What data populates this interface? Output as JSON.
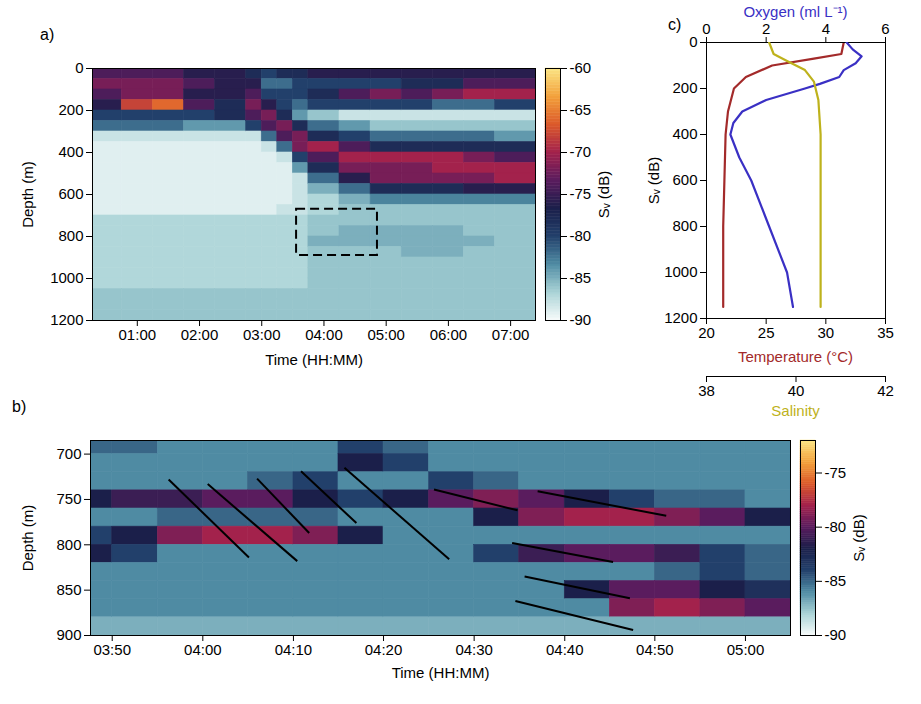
{
  "chart_data": [
    {
      "type": "heatmap",
      "panel_label": "a)",
      "x_label": "Time (HH:MM)",
      "y_label": "Depth (m)",
      "xlim": [
        0.28,
        7.4
      ],
      "xticks": [
        {
          "value": 1,
          "label": "01:00"
        },
        {
          "value": 2,
          "label": "02:00"
        },
        {
          "value": 3,
          "label": "03:00"
        },
        {
          "value": 4,
          "label": "04:00"
        },
        {
          "value": 5,
          "label": "05:00"
        },
        {
          "value": 6,
          "label": "06:00"
        },
        {
          "value": 7,
          "label": "07:00"
        }
      ],
      "ylim": [
        0,
        1200
      ],
      "yticks": [
        0,
        200,
        400,
        600,
        800,
        1000,
        1200
      ],
      "time_edges": [
        0.28,
        0.75,
        1.25,
        1.75,
        2.25,
        2.75,
        3.0,
        3.25,
        3.5,
        3.75,
        4.25,
        4.75,
        5.25,
        5.75,
        6.25,
        6.75,
        7.4
      ],
      "depth_edges": [
        0,
        50,
        100,
        150,
        200,
        250,
        300,
        350,
        400,
        450,
        500,
        550,
        600,
        650,
        700,
        750,
        800,
        850,
        900,
        950,
        1000,
        1050,
        1100,
        1150,
        1200
      ],
      "sv": [
        [
          -74,
          -72,
          -74,
          -76,
          -80,
          -82,
          -88,
          -89,
          -89,
          -89,
          -89,
          -89,
          -89,
          -89,
          -87,
          -87,
          -87,
          -87,
          -87,
          -87,
          -87,
          -86,
          -86,
          -86
        ],
        [
          -74,
          -72,
          -72,
          -68,
          -80,
          -82,
          -88,
          -89,
          -89,
          -89,
          -89,
          -89,
          -89,
          -89,
          -87,
          -87,
          -87,
          -87,
          -87,
          -87,
          -87,
          -86,
          -86,
          -86
        ],
        [
          -74,
          -72,
          -72,
          -66,
          -80,
          -82,
          -88,
          -89,
          -89,
          -89,
          -89,
          -89,
          -89,
          -89,
          -87,
          -87,
          -87,
          -87,
          -87,
          -87,
          -87,
          -86,
          -86,
          -86
        ],
        [
          -76,
          -74,
          -76,
          -74,
          -80,
          -84,
          -88,
          -89,
          -89,
          -89,
          -89,
          -89,
          -89,
          -89,
          -87,
          -87,
          -87,
          -87,
          -87,
          -87,
          -87,
          -86,
          -86,
          -86
        ],
        [
          -76,
          -76,
          -76,
          -78,
          -78,
          -84,
          -88,
          -89,
          -89,
          -89,
          -89,
          -89,
          -89,
          -89,
          -87,
          -87,
          -87,
          -87,
          -87,
          -87,
          -87,
          -86,
          -86,
          -86
        ],
        [
          -78,
          -76,
          -74,
          -72,
          -74,
          -80,
          -88,
          -89,
          -89,
          -89,
          -89,
          -89,
          -89,
          -89,
          -87,
          -87,
          -87,
          -87,
          -87,
          -87,
          -87,
          -86,
          -86,
          -86
        ],
        [
          -80,
          -82,
          -80,
          -76,
          -72,
          -74,
          -82,
          -88,
          -89,
          -89,
          -89,
          -89,
          -89,
          -89,
          -87,
          -87,
          -87,
          -87,
          -87,
          -87,
          -87,
          -86,
          -86,
          -86
        ],
        [
          -78,
          -82,
          -80,
          -80,
          -78,
          -72,
          -74,
          -82,
          -88,
          -89,
          -89,
          -89,
          -89,
          -88,
          -87,
          -87,
          -87,
          -87,
          -87,
          -87,
          -87,
          -86,
          -86,
          -86
        ],
        [
          -78,
          -80,
          -80,
          -82,
          -84,
          -78,
          -72,
          -72,
          -80,
          -84,
          -88,
          -88,
          -88,
          -88,
          -87,
          -87,
          -87,
          -87,
          -87,
          -87,
          -87,
          -86,
          -86,
          -86
        ],
        [
          -76,
          -80,
          -78,
          -80,
          -86,
          -82,
          -78,
          -70,
          -74,
          -78,
          -82,
          -85,
          -87,
          -87,
          -86,
          -86,
          -85,
          -86,
          -86,
          -86,
          -86,
          -86,
          -86,
          -86
        ],
        [
          -76,
          -80,
          -74,
          -80,
          -88,
          -84,
          -80,
          -74,
          -70,
          -72,
          -76,
          -82,
          -85,
          -86,
          -86,
          -85,
          -85,
          -86,
          -86,
          -86,
          -86,
          -86,
          -86,
          -86
        ],
        [
          -76,
          -80,
          -72,
          -80,
          -88,
          -86,
          -82,
          -78,
          -70,
          -72,
          -72,
          -78,
          -83,
          -86,
          -86,
          -85,
          -85,
          -86,
          -86,
          -86,
          -86,
          -86,
          -86,
          -86
        ],
        [
          -76,
          -78,
          -74,
          -80,
          -88,
          -86,
          -82,
          -78,
          -70,
          -72,
          -72,
          -78,
          -83,
          -86,
          -86,
          -85,
          -85,
          -85,
          -86,
          -86,
          -86,
          -86,
          -86,
          -86
        ],
        [
          -76,
          -78,
          -72,
          -82,
          -88,
          -86,
          -82,
          -78,
          -70,
          -70,
          -72,
          -78,
          -83,
          -86,
          -86,
          -85,
          -85,
          -85,
          -86,
          -86,
          -86,
          -86,
          -86,
          -86
        ],
        [
          -76,
          -74,
          -70,
          -82,
          -88,
          -86,
          -82,
          -78,
          -72,
          -70,
          -72,
          -76,
          -83,
          -86,
          -86,
          -86,
          -85,
          -86,
          -86,
          -86,
          -86,
          -86,
          -86,
          -86
        ],
        [
          -76,
          -74,
          -70,
          -80,
          -88,
          -86,
          -84,
          -78,
          -74,
          -70,
          -70,
          -76,
          -83,
          -86,
          -86,
          -86,
          -86,
          -86,
          -86,
          -86,
          -86,
          -86,
          -86,
          -86
        ]
      ],
      "colorbar": {
        "label": "Sᵥ (dB)",
        "range": [
          -90,
          -60
        ],
        "ticks": [
          -60,
          -65,
          -70,
          -75,
          -80,
          -85,
          -90
        ]
      },
      "box": {
        "time": [
          3.56,
          4.86
        ],
        "depth": [
          670,
          890
        ]
      }
    },
    {
      "type": "heatmap",
      "panel_label": "b)",
      "x_label": "Time (HH:MM)",
      "y_label": "Depth (m)",
      "xlim": [
        3.793,
        5.083
      ],
      "xticks": [
        {
          "value": 3.833,
          "label": "03:50"
        },
        {
          "value": 4,
          "label": "04:00"
        },
        {
          "value": 4.167,
          "label": "04:10"
        },
        {
          "value": 4.333,
          "label": "04:20"
        },
        {
          "value": 4.5,
          "label": "04:30"
        },
        {
          "value": 4.667,
          "label": "04:40"
        },
        {
          "value": 4.833,
          "label": "04:50"
        },
        {
          "value": 5,
          "label": "05:00"
        }
      ],
      "ylim": [
        685,
        900
      ],
      "yticks": [
        700,
        750,
        800,
        850,
        900
      ],
      "time_edges": [
        3.75,
        3.833,
        3.917,
        4,
        4.083,
        4.167,
        4.25,
        4.333,
        4.417,
        4.5,
        4.583,
        4.667,
        4.75,
        4.833,
        4.917,
        5,
        5.083
      ],
      "depth_edges": [
        685,
        700,
        720,
        740,
        760,
        780,
        800,
        820,
        840,
        860,
        880,
        900
      ],
      "sv": [
        [
          -85,
          -86,
          -86,
          -82,
          -86,
          -84,
          -82,
          -86,
          -86,
          -86,
          -87
        ],
        [
          -85,
          -86,
          -86,
          -81,
          -86,
          -82,
          -84,
          -86,
          -86,
          -86,
          -87
        ],
        [
          -86,
          -86,
          -86,
          -81,
          -85,
          -79,
          -86,
          -86,
          -86,
          -86,
          -87
        ],
        [
          -86,
          -86,
          -86,
          -80,
          -85,
          -78,
          -86,
          -86,
          -86,
          -86,
          -87
        ],
        [
          -86,
          -86,
          -85,
          -80,
          -85,
          -78,
          -86,
          -86,
          -86,
          -86,
          -87
        ],
        [
          -86,
          -86,
          -84,
          -82,
          -85,
          -79,
          -86,
          -86,
          -86,
          -86,
          -87
        ],
        [
          -84,
          -82,
          -86,
          -84,
          -86,
          -82,
          -86,
          -86,
          -86,
          -86,
          -87
        ],
        [
          -85,
          -84,
          -86,
          -82,
          -86,
          -86,
          -86,
          -86,
          -86,
          -86,
          -87
        ],
        [
          -86,
          -86,
          -84,
          -80,
          -86,
          -86,
          -86,
          -86,
          -86,
          -86,
          -87
        ],
        [
          -86,
          -86,
          -85,
          -79,
          -82,
          -86,
          -84,
          -86,
          -86,
          -86,
          -87
        ],
        [
          -86,
          -86,
          -86,
          -80,
          -79,
          -86,
          -81,
          -86,
          -86,
          -86,
          -87
        ],
        [
          -86,
          -86,
          -86,
          -82,
          -78,
          -86,
          -80,
          -86,
          -82,
          -86,
          -87
        ],
        [
          -86,
          -86,
          -86,
          -84,
          -78,
          -86,
          -80,
          -86,
          -80,
          -79,
          -87
        ],
        [
          -86,
          -86,
          -86,
          -85,
          -79,
          -86,
          -81,
          -85,
          -80,
          -78,
          -87
        ],
        [
          -86,
          -86,
          -86,
          -85,
          -80,
          -86,
          -84,
          -84,
          -82,
          -79,
          -87
        ],
        [
          -86,
          -86,
          -86,
          -86,
          -82,
          -86,
          -85,
          -85,
          -83,
          -80,
          -87
        ]
      ],
      "colorbar": {
        "label": "Sᵥ (dB)",
        "range": [
          -90,
          -72
        ],
        "ticks": [
          -75,
          -80,
          -85,
          -90
        ]
      },
      "tracks": [
        {
          "time": [
            3.937,
            4.085
          ],
          "depth": [
            728,
            814
          ]
        },
        {
          "time": [
            4.009,
            4.174
          ],
          "depth": [
            733,
            818
          ]
        },
        {
          "time": [
            4.1,
            4.196
          ],
          "depth": [
            727,
            787
          ]
        },
        {
          "time": [
            4.181,
            4.283
          ],
          "depth": [
            719,
            776
          ]
        },
        {
          "time": [
            4.261,
            4.454
          ],
          "depth": [
            715,
            816
          ]
        },
        {
          "time": [
            4.426,
            4.58
          ],
          "depth": [
            739,
            762
          ]
        },
        {
          "time": [
            4.617,
            4.854
          ],
          "depth": [
            741,
            768
          ]
        },
        {
          "time": [
            4.57,
            4.756
          ],
          "depth": [
            798,
            819
          ]
        },
        {
          "time": [
            4.593,
            4.787
          ],
          "depth": [
            835,
            859
          ]
        },
        {
          "time": [
            4.576,
            4.793
          ],
          "depth": [
            862,
            894
          ]
        }
      ]
    },
    {
      "type": "line",
      "panel_label": "c)",
      "y_label": "Sᵥ (dB)",
      "ylim": [
        0,
        1200
      ],
      "yticks": [
        0,
        200,
        400,
        600,
        800,
        1000,
        1200
      ],
      "series": [
        {
          "name": "Oxygen (ml L⁻¹)",
          "color": "#3a30c4",
          "xlim": [
            0,
            6
          ],
          "xticks": [
            0,
            2,
            4,
            6
          ],
          "depth": [
            0,
            30,
            60,
            90,
            120,
            150,
            180,
            200,
            250,
            300,
            350,
            400,
            500,
            600,
            800,
            1000,
            1150
          ],
          "values": [
            4.7,
            4.9,
            5.2,
            5.0,
            4.6,
            4.45,
            3.8,
            3.3,
            2.0,
            1.2,
            0.9,
            0.8,
            1.1,
            1.5,
            2.1,
            2.7,
            2.9
          ]
        },
        {
          "name": "Temperature (°C)",
          "color": "#a32a2a",
          "xlim": [
            20,
            35
          ],
          "xticks": [
            20,
            25,
            30,
            35
          ],
          "depth": [
            0,
            50,
            70,
            100,
            150,
            200,
            300,
            400,
            600,
            800,
            1150
          ],
          "values": [
            31.5,
            31.3,
            29,
            25.5,
            23.3,
            22.3,
            21.8,
            21.6,
            21.5,
            21.4,
            21.4
          ]
        },
        {
          "name": "Salinity",
          "color": "#beb21c",
          "xlim": [
            38,
            42
          ],
          "xticks": [
            38,
            40,
            42
          ],
          "depth": [
            0,
            50,
            80,
            120,
            170,
            250,
            400,
            1150
          ],
          "values": [
            39.4,
            39.5,
            39.8,
            40.2,
            40.4,
            40.5,
            40.55,
            40.55
          ]
        }
      ]
    }
  ]
}
